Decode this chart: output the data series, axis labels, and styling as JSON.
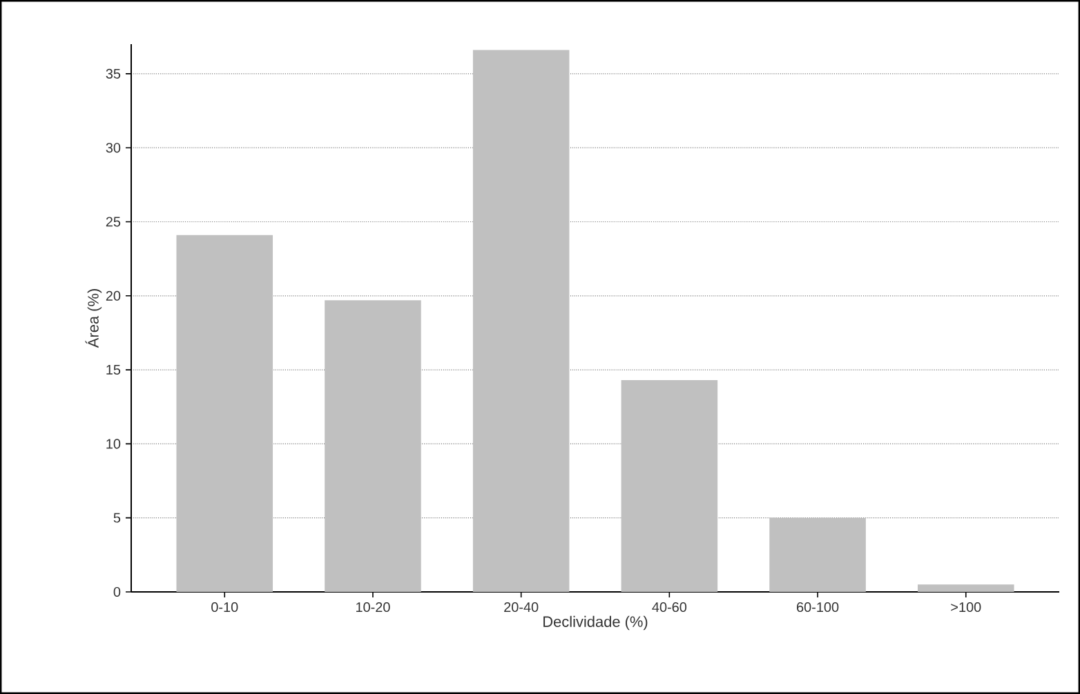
{
  "chart_data": {
    "type": "bar",
    "xlabel": "Declividade (%)",
    "ylabel": "Área (%)",
    "categories": [
      "0-10",
      "10-20",
      "20-40",
      "40-60",
      "60-100",
      ">100"
    ],
    "values": [
      24.1,
      19.7,
      36.6,
      14.3,
      5.0,
      0.5
    ],
    "color": "#c0c0c0",
    "ylim": [
      0,
      37
    ],
    "yticks": [
      0,
      5,
      10,
      15,
      20,
      25,
      30,
      35
    ],
    "grid": "y"
  }
}
